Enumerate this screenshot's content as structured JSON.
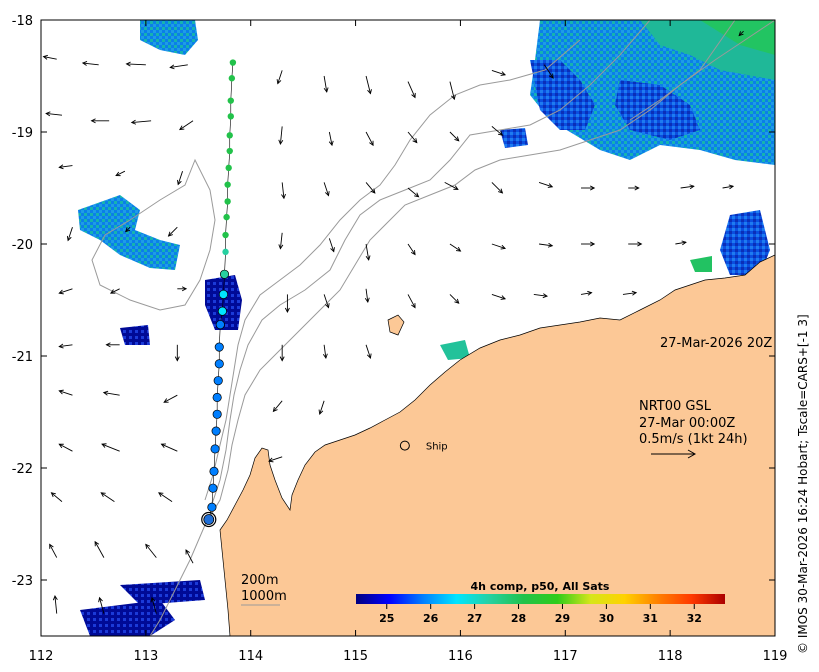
{
  "map": {
    "lon_range": [
      112,
      119
    ],
    "lat_range": [
      -23.5,
      -18
    ],
    "lon_ticks": [
      "112",
      "113",
      "114",
      "115",
      "116",
      "117",
      "118",
      "119"
    ],
    "lat_ticks": [
      "-18",
      "-19",
      "-20",
      "-21",
      "-22",
      "-23"
    ],
    "land_color": "#fcc896",
    "coast_color": "#000000",
    "isobath_color": "#9a9a9a"
  },
  "annotations": {
    "timestamp": "27-Mar-2026 20Z",
    "product_line1": "NRT00 GSL",
    "product_line2": "27-Mar 00:00Z",
    "product_line3": "0.5m/s (1kt 24h)",
    "ship_label": "Ship",
    "isobath_200": "200m",
    "isobath_1000": "1000m",
    "side_credit": "© IMOS 30-Mar-2026 16:24 Hobart; Tscale=CARS+[-1 3]"
  },
  "colorbar": {
    "title": "4h comp, p50, All Sats",
    "ticks": [
      "25",
      "26",
      "27",
      "28",
      "29",
      "30",
      "31",
      "32"
    ],
    "range": [
      24.3,
      32.7
    ],
    "colors": [
      "#00007f",
      "#0000ff",
      "#007fff",
      "#00e5ff",
      "#27d0a0",
      "#22c24a",
      "#2ecc1a",
      "#d6e61a",
      "#ffd200",
      "#ff8000",
      "#ff3a00",
      "#ab0000"
    ]
  },
  "ship": {
    "lon": 115.47,
    "lat": -21.8
  },
  "drifter_track": [
    {
      "lon": 113.83,
      "lat": -18.38,
      "sst": 28.2
    },
    {
      "lon": 113.82,
      "lat": -18.52,
      "sst": 28.2
    },
    {
      "lon": 113.81,
      "lat": -18.72,
      "sst": 28.1
    },
    {
      "lon": 113.81,
      "lat": -18.86,
      "sst": 28.1
    },
    {
      "lon": 113.8,
      "lat": -19.03,
      "sst": 28.0
    },
    {
      "lon": 113.8,
      "lat": -19.17,
      "sst": 28.0
    },
    {
      "lon": 113.79,
      "lat": -19.32,
      "sst": 28.0
    },
    {
      "lon": 113.78,
      "lat": -19.47,
      "sst": 27.9
    },
    {
      "lon": 113.78,
      "lat": -19.62,
      "sst": 27.9
    },
    {
      "lon": 113.77,
      "lat": -19.76,
      "sst": 27.8
    },
    {
      "lon": 113.76,
      "lat": -19.92,
      "sst": 27.8
    },
    {
      "lon": 113.76,
      "lat": -20.07,
      "sst": 27.6
    },
    {
      "lon": 113.75,
      "lat": -20.27,
      "sst": 27.2
    },
    {
      "lon": 113.74,
      "lat": -20.45,
      "sst": 26.6
    },
    {
      "lon": 113.73,
      "lat": -20.6,
      "sst": 26.3
    },
    {
      "lon": 113.71,
      "lat": -20.72,
      "sst": 26.2
    },
    {
      "lon": 113.7,
      "lat": -20.92,
      "sst": 26.1
    },
    {
      "lon": 113.7,
      "lat": -21.07,
      "sst": 26.0
    },
    {
      "lon": 113.69,
      "lat": -21.22,
      "sst": 26.0
    },
    {
      "lon": 113.68,
      "lat": -21.37,
      "sst": 25.9
    },
    {
      "lon": 113.68,
      "lat": -21.52,
      "sst": 25.9
    },
    {
      "lon": 113.67,
      "lat": -21.67,
      "sst": 25.9
    },
    {
      "lon": 113.66,
      "lat": -21.83,
      "sst": 25.8
    },
    {
      "lon": 113.65,
      "lat": -22.03,
      "sst": 25.8
    },
    {
      "lon": 113.64,
      "lat": -22.18,
      "sst": 25.8
    },
    {
      "lon": 113.63,
      "lat": -22.35,
      "sst": 25.7
    },
    {
      "lon": 113.6,
      "lat": -22.46,
      "sst": 25.7
    }
  ],
  "current_vectors": [
    {
      "lon": 112.15,
      "lat": -18.35,
      "u": -0.15,
      "v": 0.03
    },
    {
      "lon": 112.55,
      "lat": -18.4,
      "u": -0.18,
      "v": 0.02
    },
    {
      "lon": 113.0,
      "lat": -18.4,
      "u": -0.22,
      "v": 0.01
    },
    {
      "lon": 113.4,
      "lat": -18.4,
      "u": -0.2,
      "v": -0.03
    },
    {
      "lon": 114.3,
      "lat": -18.45,
      "u": -0.05,
      "v": -0.15
    },
    {
      "lon": 114.7,
      "lat": -18.5,
      "u": 0.03,
      "v": -0.18
    },
    {
      "lon": 115.1,
      "lat": -18.5,
      "u": 0.05,
      "v": -0.2
    },
    {
      "lon": 115.5,
      "lat": -18.55,
      "u": 0.08,
      "v": -0.18
    },
    {
      "lon": 115.9,
      "lat": -18.55,
      "u": 0.05,
      "v": -0.2
    },
    {
      "lon": 116.3,
      "lat": -18.45,
      "u": 0.15,
      "v": -0.05
    },
    {
      "lon": 116.8,
      "lat": -18.4,
      "u": 0.1,
      "v": -0.15
    },
    {
      "lon": 118.7,
      "lat": -18.1,
      "u": -0.05,
      "v": -0.05
    },
    {
      "lon": 112.2,
      "lat": -18.85,
      "u": -0.18,
      "v": 0.02
    },
    {
      "lon": 112.65,
      "lat": -18.9,
      "u": -0.2,
      "v": 0.0
    },
    {
      "lon": 113.05,
      "lat": -18.9,
      "u": -0.22,
      "v": -0.02
    },
    {
      "lon": 113.45,
      "lat": -18.9,
      "u": -0.15,
      "v": -0.1
    },
    {
      "lon": 114.3,
      "lat": -18.95,
      "u": -0.02,
      "v": -0.2
    },
    {
      "lon": 114.75,
      "lat": -19.0,
      "u": 0.03,
      "v": -0.15
    },
    {
      "lon": 115.1,
      "lat": -19.0,
      "u": 0.08,
      "v": -0.15
    },
    {
      "lon": 115.5,
      "lat": -19.0,
      "u": 0.1,
      "v": -0.12
    },
    {
      "lon": 115.9,
      "lat": -19.0,
      "u": 0.1,
      "v": -0.1
    },
    {
      "lon": 116.3,
      "lat": -18.95,
      "u": 0.12,
      "v": -0.1
    },
    {
      "lon": 112.3,
      "lat": -19.3,
      "u": -0.15,
      "v": -0.02
    },
    {
      "lon": 112.8,
      "lat": -19.35,
      "u": -0.1,
      "v": -0.05
    },
    {
      "lon": 113.35,
      "lat": -19.35,
      "u": -0.05,
      "v": -0.15
    },
    {
      "lon": 114.3,
      "lat": -19.45,
      "u": 0.02,
      "v": -0.18
    },
    {
      "lon": 114.7,
      "lat": -19.45,
      "u": 0.05,
      "v": -0.15
    },
    {
      "lon": 115.1,
      "lat": -19.45,
      "u": 0.1,
      "v": -0.12
    },
    {
      "lon": 115.5,
      "lat": -19.5,
      "u": 0.12,
      "v": -0.1
    },
    {
      "lon": 115.85,
      "lat": -19.45,
      "u": 0.15,
      "v": -0.08
    },
    {
      "lon": 116.3,
      "lat": -19.45,
      "u": 0.12,
      "v": -0.12
    },
    {
      "lon": 116.75,
      "lat": -19.45,
      "u": 0.15,
      "v": -0.05
    },
    {
      "lon": 117.15,
      "lat": -19.5,
      "u": 0.15,
      "v": 0.0
    },
    {
      "lon": 117.6,
      "lat": -19.5,
      "u": 0.12,
      "v": 0.0
    },
    {
      "lon": 118.1,
      "lat": -19.5,
      "u": 0.15,
      "v": 0.02
    },
    {
      "lon": 118.5,
      "lat": -19.5,
      "u": 0.12,
      "v": 0.02
    },
    {
      "lon": 112.3,
      "lat": -19.85,
      "u": -0.05,
      "v": -0.15
    },
    {
      "lon": 112.85,
      "lat": -19.85,
      "u": -0.05,
      "v": -0.05
    },
    {
      "lon": 113.3,
      "lat": -19.85,
      "u": -0.1,
      "v": -0.1
    },
    {
      "lon": 114.3,
      "lat": -19.9,
      "u": -0.02,
      "v": -0.18
    },
    {
      "lon": 114.75,
      "lat": -19.95,
      "u": 0.05,
      "v": -0.15
    },
    {
      "lon": 115.1,
      "lat": -20.0,
      "u": 0.03,
      "v": -0.18
    },
    {
      "lon": 115.5,
      "lat": -20.0,
      "u": 0.08,
      "v": -0.12
    },
    {
      "lon": 115.9,
      "lat": -20.0,
      "u": 0.12,
      "v": -0.08
    },
    {
      "lon": 116.3,
      "lat": -20.0,
      "u": 0.15,
      "v": -0.05
    },
    {
      "lon": 116.75,
      "lat": -20.0,
      "u": 0.15,
      "v": -0.02
    },
    {
      "lon": 117.15,
      "lat": -20.0,
      "u": 0.15,
      "v": 0.0
    },
    {
      "lon": 117.6,
      "lat": -20.0,
      "u": 0.15,
      "v": 0.0
    },
    {
      "lon": 118.05,
      "lat": -20.0,
      "u": 0.12,
      "v": 0.02
    },
    {
      "lon": 112.3,
      "lat": -20.4,
      "u": -0.15,
      "v": -0.05
    },
    {
      "lon": 112.75,
      "lat": -20.4,
      "u": -0.1,
      "v": -0.05
    },
    {
      "lon": 113.3,
      "lat": -20.4,
      "u": 0.1,
      "v": 0.0
    },
    {
      "lon": 114.35,
      "lat": -20.45,
      "u": 0.0,
      "v": -0.2
    },
    {
      "lon": 114.7,
      "lat": -20.45,
      "u": 0.05,
      "v": -0.15
    },
    {
      "lon": 115.1,
      "lat": -20.4,
      "u": 0.02,
      "v": -0.15
    },
    {
      "lon": 115.5,
      "lat": -20.45,
      "u": 0.08,
      "v": -0.15
    },
    {
      "lon": 115.9,
      "lat": -20.45,
      "u": 0.1,
      "v": -0.1
    },
    {
      "lon": 116.3,
      "lat": -20.45,
      "u": 0.15,
      "v": -0.05
    },
    {
      "lon": 116.7,
      "lat": -20.45,
      "u": 0.15,
      "v": -0.02
    },
    {
      "lon": 117.15,
      "lat": -20.45,
      "u": 0.12,
      "v": 0.02
    },
    {
      "lon": 117.55,
      "lat": -20.45,
      "u": 0.15,
      "v": 0.02
    },
    {
      "lon": 112.3,
      "lat": -20.9,
      "u": -0.15,
      "v": -0.02
    },
    {
      "lon": 112.75,
      "lat": -20.9,
      "u": -0.15,
      "v": 0.0
    },
    {
      "lon": 113.3,
      "lat": -20.9,
      "u": 0.0,
      "v": -0.18
    },
    {
      "lon": 114.3,
      "lat": -20.9,
      "u": 0.0,
      "v": -0.18
    },
    {
      "lon": 114.7,
      "lat": -20.9,
      "u": 0.02,
      "v": -0.15
    },
    {
      "lon": 115.1,
      "lat": -20.9,
      "u": 0.05,
      "v": -0.15
    },
    {
      "lon": 112.3,
      "lat": -21.35,
      "u": -0.15,
      "v": 0.05
    },
    {
      "lon": 112.75,
      "lat": -21.35,
      "u": -0.18,
      "v": 0.03
    },
    {
      "lon": 113.3,
      "lat": -21.35,
      "u": -0.15,
      "v": -0.08
    },
    {
      "lon": 114.3,
      "lat": -21.4,
      "u": -0.1,
      "v": -0.12
    },
    {
      "lon": 114.7,
      "lat": -21.4,
      "u": -0.05,
      "v": -0.15
    },
    {
      "lon": 112.3,
      "lat": -21.85,
      "u": -0.15,
      "v": 0.08
    },
    {
      "lon": 112.75,
      "lat": -21.85,
      "u": -0.2,
      "v": 0.08
    },
    {
      "lon": 113.3,
      "lat": -21.85,
      "u": -0.18,
      "v": 0.08
    },
    {
      "lon": 114.3,
      "lat": -21.9,
      "u": -0.15,
      "v": -0.05
    },
    {
      "lon": 112.2,
      "lat": -22.3,
      "u": -0.12,
      "v": 0.1
    },
    {
      "lon": 112.7,
      "lat": -22.3,
      "u": -0.15,
      "v": 0.1
    },
    {
      "lon": 113.25,
      "lat": -22.3,
      "u": -0.15,
      "v": 0.1
    },
    {
      "lon": 112.15,
      "lat": -22.8,
      "u": -0.08,
      "v": 0.15
    },
    {
      "lon": 112.6,
      "lat": -22.8,
      "u": -0.1,
      "v": 0.18
    },
    {
      "lon": 113.1,
      "lat": -22.8,
      "u": -0.12,
      "v": 0.15
    },
    {
      "lon": 113.45,
      "lat": -22.85,
      "u": -0.08,
      "v": 0.15
    },
    {
      "lon": 112.15,
      "lat": -23.3,
      "u": -0.02,
      "v": 0.2
    },
    {
      "lon": 112.6,
      "lat": -23.3,
      "u": -0.05,
      "v": 0.18
    },
    {
      "lon": 113.1,
      "lat": -23.3,
      "u": -0.05,
      "v": 0.18
    }
  ]
}
